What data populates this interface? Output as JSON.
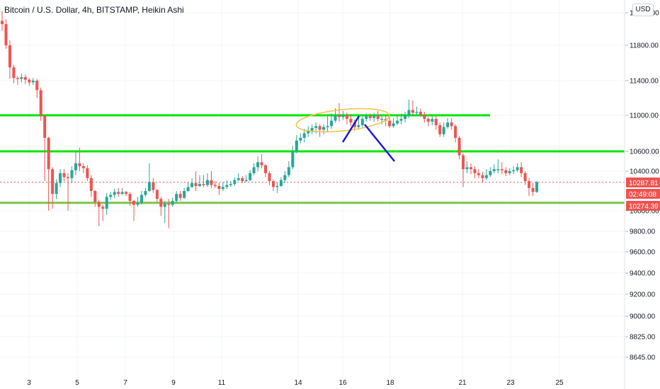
{
  "header": {
    "title": "Bitcoin / U.S. Dollar, 4h, BITSTAMP, Heikin Ashi",
    "currency_button": "USD"
  },
  "colors": {
    "up": "#26a69a",
    "down": "#ef5350",
    "grid": "#f0f3fa",
    "support_resistance": "#00e600",
    "lower_support": "#7cc34a",
    "price_tag": "#ef5350",
    "ellipse": "#f5c242",
    "trend_lines": "#1a1ad6"
  },
  "price_tags": {
    "last_price": "10287.81",
    "countdown": "02:49:08",
    "second_price": "10274.39"
  },
  "chart_data": {
    "type": "candlestick",
    "title": "Bitcoin / U.S. Dollar, 4h, BITSTAMP, Heikin Ashi",
    "y_ticks": [
      12000,
      11800,
      11400,
      11000,
      10600,
      10400,
      10000,
      9800,
      9600,
      9400,
      9200,
      9000,
      8825,
      8645
    ],
    "y_tick_labels": [
      "12000.00",
      "11800.00",
      "11400.00",
      "11000.00",
      "10600.00",
      "10400.00",
      "10000.00",
      "9800.00",
      "9600.00",
      "9400.00",
      "9200.00",
      "9000.00",
      "8825.00",
      "8645.00"
    ],
    "x_ticks": [
      "3",
      "5",
      "7",
      "9",
      "11",
      "14",
      "16",
      "18",
      "21",
      "23",
      "25"
    ],
    "candles": [
      [
        11950,
        11930,
        12010,
        11890
      ],
      [
        11930,
        11800,
        11960,
        11760
      ],
      [
        11800,
        11550,
        11830,
        11420
      ],
      [
        11550,
        11430,
        11580,
        11370
      ],
      [
        11430,
        11420,
        11450,
        11350
      ],
      [
        11420,
        11440,
        11480,
        11380
      ],
      [
        11440,
        11410,
        11470,
        11360
      ],
      [
        11410,
        11380,
        11430,
        11340
      ],
      [
        11380,
        11400,
        11430,
        11350
      ],
      [
        11400,
        11290,
        11420,
        11200
      ],
      [
        11290,
        10990,
        11320,
        10940
      ],
      [
        10990,
        10750,
        11000,
        10300
      ],
      [
        10750,
        10420,
        10760,
        10000
      ],
      [
        10420,
        10170,
        10440,
        10020
      ],
      [
        10170,
        10280,
        10320,
        10120
      ],
      [
        10280,
        10380,
        10420,
        10240
      ],
      [
        10380,
        10340,
        10420,
        10300
      ],
      [
        10340,
        10330,
        10380,
        10000
      ],
      [
        10330,
        10410,
        10450,
        10280
      ],
      [
        10410,
        10480,
        10600,
        10360
      ],
      [
        10480,
        10450,
        10640,
        10400
      ],
      [
        10450,
        10430,
        10480,
        10380
      ],
      [
        10430,
        10330,
        10460,
        10300
      ],
      [
        10330,
        10200,
        10360,
        10140
      ],
      [
        10200,
        10090,
        10210,
        10040
      ],
      [
        10090,
        10040,
        10110,
        9850
      ],
      [
        10040,
        10020,
        10060,
        9900
      ],
      [
        10020,
        10140,
        10180,
        9960
      ],
      [
        10140,
        10160,
        10190,
        10110
      ],
      [
        10160,
        10190,
        10220,
        10130
      ],
      [
        10190,
        10170,
        10230,
        10140
      ],
      [
        10170,
        10190,
        10230,
        10160
      ],
      [
        10190,
        10170,
        10200,
        10150
      ],
      [
        10170,
        10100,
        10190,
        10050
      ],
      [
        10100,
        10060,
        10110,
        9900
      ],
      [
        10060,
        10080,
        10140,
        10040
      ],
      [
        10080,
        10160,
        10200,
        10060
      ],
      [
        10160,
        10200,
        10230,
        10140
      ],
      [
        10200,
        10290,
        10480,
        10190
      ],
      [
        10290,
        10210,
        10330,
        10180
      ],
      [
        10210,
        10120,
        10220,
        10090
      ],
      [
        10120,
        10040,
        10140,
        9950
      ],
      [
        10040,
        10070,
        10100,
        9880
      ],
      [
        10070,
        10060,
        10120,
        9830
      ],
      [
        10060,
        10100,
        10130,
        10040
      ],
      [
        10100,
        10170,
        10200,
        10080
      ],
      [
        10170,
        10130,
        10200,
        10100
      ],
      [
        10130,
        10200,
        10230,
        10120
      ],
      [
        10200,
        10240,
        10290,
        10190
      ],
      [
        10240,
        10280,
        10330,
        10230
      ],
      [
        10280,
        10250,
        10400,
        10200
      ],
      [
        10250,
        10270,
        10360,
        10240
      ],
      [
        10270,
        10260,
        10360,
        10240
      ],
      [
        10260,
        10310,
        10380,
        10240
      ],
      [
        10310,
        10260,
        10400,
        10230
      ],
      [
        10260,
        10250,
        10300,
        10230
      ],
      [
        10250,
        10220,
        10280,
        10160
      ],
      [
        10220,
        10240,
        10290,
        10200
      ],
      [
        10240,
        10260,
        10310,
        10220
      ],
      [
        10260,
        10270,
        10300,
        10240
      ],
      [
        10270,
        10310,
        10340,
        10250
      ],
      [
        10310,
        10330,
        10380,
        10300
      ],
      [
        10330,
        10300,
        10350,
        10280
      ],
      [
        10300,
        10310,
        10360,
        10290
      ],
      [
        10310,
        10380,
        10410,
        10300
      ],
      [
        10380,
        10440,
        10480,
        10360
      ],
      [
        10440,
        10490,
        10550,
        10400
      ],
      [
        10490,
        10460,
        10570,
        10430
      ],
      [
        10460,
        10380,
        10470,
        10340
      ],
      [
        10380,
        10300,
        10400,
        10260
      ],
      [
        10300,
        10240,
        10320,
        10200
      ],
      [
        10240,
        10250,
        10290,
        10180
      ],
      [
        10250,
        10310,
        10340,
        10240
      ],
      [
        10310,
        10360,
        10400,
        10280
      ],
      [
        10360,
        10440,
        10500,
        10340
      ],
      [
        10440,
        10600,
        10660,
        10420
      ],
      [
        10600,
        10720,
        10780,
        10580
      ],
      [
        10720,
        10750,
        10800,
        10690
      ],
      [
        10750,
        10800,
        10850,
        10700
      ],
      [
        10800,
        10830,
        10880,
        10760
      ],
      [
        10830,
        10860,
        10900,
        10790
      ],
      [
        10860,
        10880,
        10920,
        10800
      ],
      [
        10880,
        10840,
        10900,
        10760
      ],
      [
        10840,
        10870,
        10900,
        10790
      ],
      [
        10870,
        10880,
        10990,
        10820
      ],
      [
        10880,
        10940,
        11020,
        10850
      ],
      [
        10940,
        11000,
        11080,
        10920
      ],
      [
        11000,
        10980,
        11140,
        10930
      ],
      [
        10980,
        11000,
        11050,
        10950
      ],
      [
        11000,
        10960,
        11030,
        10900
      ],
      [
        10960,
        10920,
        11000,
        10880
      ],
      [
        10920,
        10870,
        10950,
        10830
      ],
      [
        10870,
        10890,
        10980,
        10840
      ],
      [
        10890,
        10960,
        11010,
        10870
      ],
      [
        10960,
        10990,
        11020,
        10930
      ],
      [
        10990,
        10970,
        11020,
        10940
      ],
      [
        10970,
        11000,
        11030,
        10930
      ],
      [
        11000,
        10960,
        11050,
        10930
      ],
      [
        10960,
        10960,
        11000,
        10900
      ],
      [
        10960,
        10940,
        11010,
        10880
      ],
      [
        10940,
        10880,
        10980,
        10860
      ],
      [
        10880,
        10910,
        10970,
        10860
      ],
      [
        10910,
        10940,
        11010,
        10890
      ],
      [
        10940,
        10960,
        11020,
        10900
      ],
      [
        10960,
        11000,
        11040,
        10920
      ],
      [
        11000,
        11060,
        11180,
        10970
      ],
      [
        11060,
        11030,
        11170,
        11000
      ],
      [
        11030,
        11040,
        11100,
        11000
      ],
      [
        11040,
        11010,
        11080,
        10980
      ],
      [
        11010,
        10960,
        11040,
        10920
      ],
      [
        10960,
        10930,
        10980,
        10880
      ],
      [
        10930,
        10960,
        11000,
        10890
      ],
      [
        10960,
        10890,
        10990,
        10840
      ],
      [
        10890,
        10790,
        10920,
        10760
      ],
      [
        10790,
        10870,
        10920,
        10760
      ],
      [
        10870,
        10920,
        10970,
        10850
      ],
      [
        10920,
        10880,
        10970,
        10840
      ],
      [
        10880,
        10750,
        10900,
        10700
      ],
      [
        10750,
        10560,
        10770,
        10520
      ],
      [
        10560,
        10420,
        10580,
        10240
      ],
      [
        10420,
        10440,
        10500,
        10380
      ],
      [
        10440,
        10420,
        10480,
        10370
      ],
      [
        10420,
        10380,
        10450,
        10330
      ],
      [
        10380,
        10360,
        10420,
        10330
      ],
      [
        10360,
        10330,
        10390,
        10290
      ],
      [
        10330,
        10360,
        10420,
        10310
      ],
      [
        10360,
        10400,
        10440,
        10340
      ],
      [
        10400,
        10420,
        10470,
        10380
      ],
      [
        10420,
        10420,
        10520,
        10380
      ],
      [
        10420,
        10410,
        10490,
        10370
      ],
      [
        10410,
        10380,
        10440,
        10350
      ],
      [
        10380,
        10400,
        10430,
        10360
      ],
      [
        10400,
        10410,
        10450,
        10370
      ],
      [
        10410,
        10440,
        10480,
        10390
      ],
      [
        10440,
        10380,
        10490,
        10340
      ],
      [
        10380,
        10300,
        10400,
        10260
      ],
      [
        10300,
        10230,
        10330,
        10150
      ],
      [
        10230,
        10190,
        10280,
        10150
      ],
      [
        10190,
        10290,
        10300,
        10180
      ]
    ],
    "horizontal_lines": [
      {
        "price": 11000,
        "style": "bright-green"
      },
      {
        "price": 10600,
        "style": "bright-green"
      },
      {
        "price": 10080,
        "style": "light-green"
      }
    ],
    "grid": true,
    "price_axis": "right"
  }
}
